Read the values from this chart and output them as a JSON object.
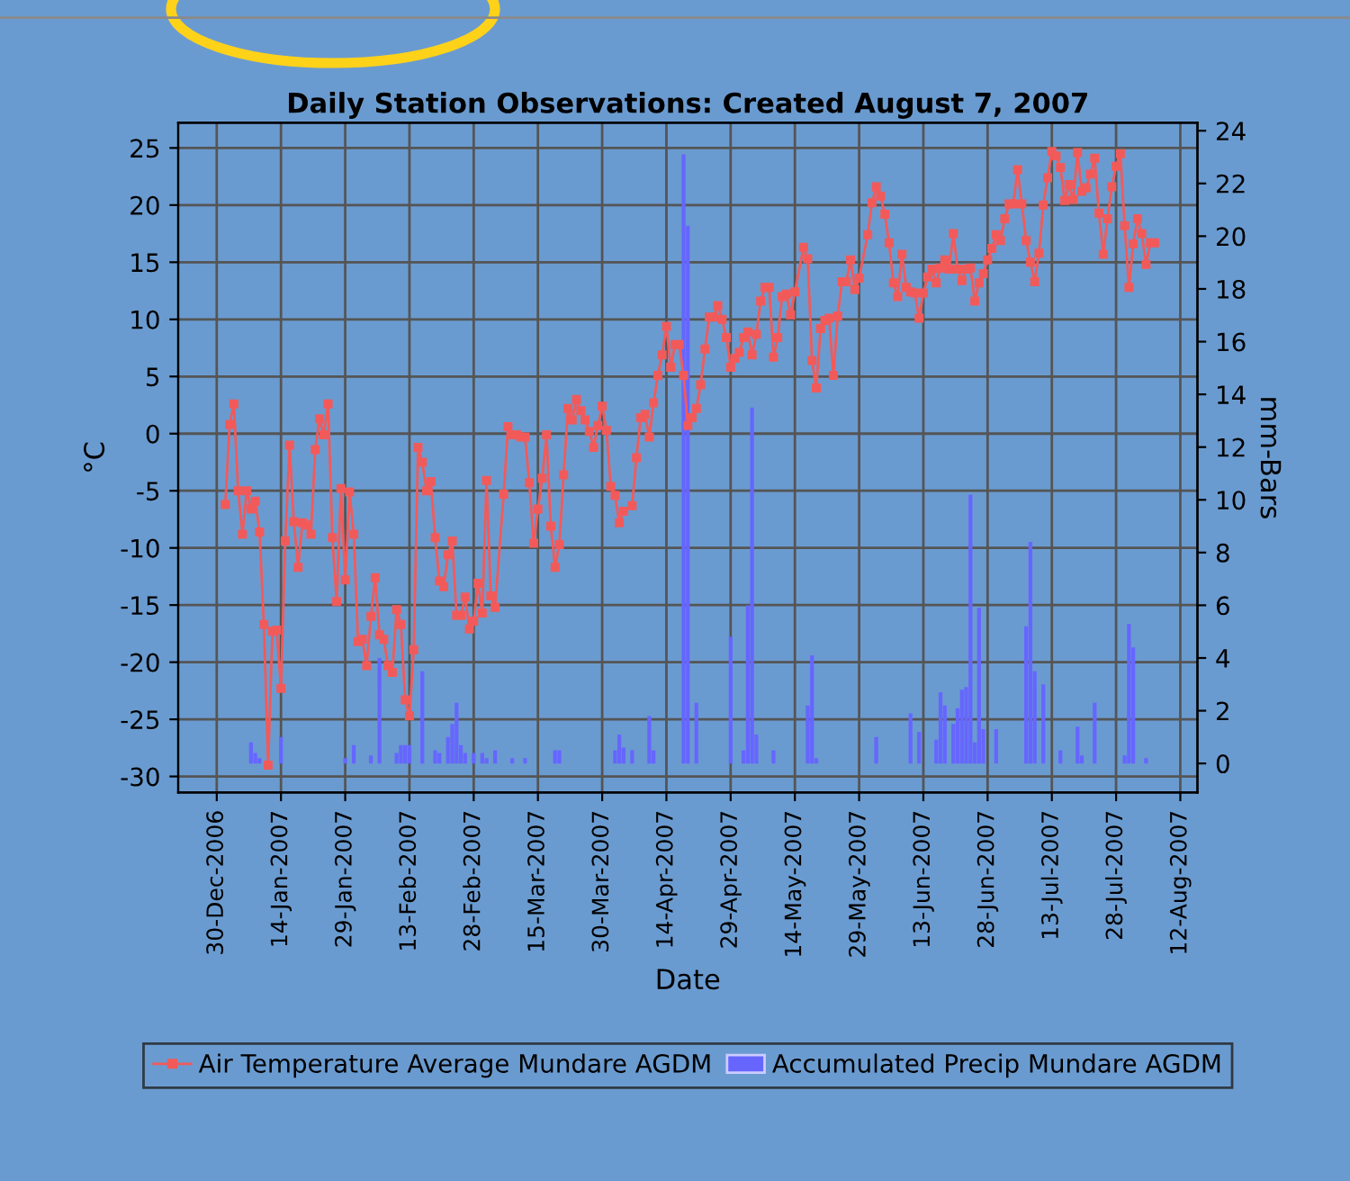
{
  "chart_data": {
    "type": "line",
    "title": "Daily Station Observations: Created August 7, 2007",
    "xlabel": "Date",
    "ylabel": "°C",
    "y2label": "mm-Bars",
    "xlim": [
      "2006-12-21",
      "2007-08-16"
    ],
    "xticks": [
      {
        "value": "2006-12-30",
        "label": "30-Dec-2006"
      },
      {
        "value": "2007-01-14",
        "label": "14-Jan-2007"
      },
      {
        "value": "2007-01-29",
        "label": "29-Jan-2007"
      },
      {
        "value": "2007-02-13",
        "label": "13-Feb-2007"
      },
      {
        "value": "2007-02-28",
        "label": "28-Feb-2007"
      },
      {
        "value": "2007-03-15",
        "label": "15-Mar-2007"
      },
      {
        "value": "2007-03-30",
        "label": "30-Mar-2007"
      },
      {
        "value": "2007-04-14",
        "label": "14-Apr-2007"
      },
      {
        "value": "2007-04-29",
        "label": "29-Apr-2007"
      },
      {
        "value": "2007-05-14",
        "label": "14-May-2007"
      },
      {
        "value": "2007-05-29",
        "label": "29-May-2007"
      },
      {
        "value": "2007-06-13",
        "label": "13-Jun-2007"
      },
      {
        "value": "2007-06-28",
        "label": "28-Jun-2007"
      },
      {
        "value": "2007-07-13",
        "label": "13-Jul-2007"
      },
      {
        "value": "2007-07-28",
        "label": "28-Jul-2007"
      },
      {
        "value": "2007-08-12",
        "label": "12-Aug-2007"
      }
    ],
    "ylim": [
      -31.4,
      27.2
    ],
    "yticks": [
      -30,
      -25,
      -20,
      -15,
      -10,
      -5,
      0,
      5,
      10,
      15,
      20,
      25
    ],
    "y2lim": [
      -1.1,
      24.3
    ],
    "y2ticks": [
      0,
      2,
      4,
      6,
      8,
      10,
      12,
      14,
      16,
      18,
      20,
      22,
      24
    ],
    "grid": true,
    "legend": "bottom",
    "marker": "square",
    "line_style": "solid",
    "series": [
      {
        "name": "Air Temperature Average Mundare AGDM",
        "color": "#f25a5a",
        "x": [
          "2007-01-01",
          "2007-01-02",
          "2007-01-03",
          "2007-01-04",
          "2007-01-05",
          "2007-01-06",
          "2007-01-07",
          "2007-01-08",
          "2007-01-09",
          "2007-01-10",
          "2007-01-11",
          "2007-01-12",
          "2007-01-13",
          "2007-01-14",
          "2007-01-15",
          "2007-01-16",
          "2007-01-17",
          "2007-01-18",
          "2007-01-19",
          "2007-01-20",
          "2007-01-21",
          "2007-01-22",
          "2007-01-23",
          "2007-01-24",
          "2007-01-25",
          "2007-01-26",
          "2007-01-27",
          "2007-01-28",
          "2007-01-29",
          "2007-01-30",
          "2007-01-31",
          "2007-02-01",
          "2007-02-02",
          "2007-02-03",
          "2007-02-04",
          "2007-02-05",
          "2007-02-06",
          "2007-02-07",
          "2007-02-08",
          "2007-02-09",
          "2007-02-10",
          "2007-02-11",
          "2007-02-12",
          "2007-02-13",
          "2007-02-14",
          "2007-02-15",
          "2007-02-16",
          "2007-02-17",
          "2007-02-18",
          "2007-02-19",
          "2007-02-20",
          "2007-02-21",
          "2007-02-22",
          "2007-02-23",
          "2007-02-24",
          "2007-02-25",
          "2007-02-26",
          "2007-02-27",
          "2007-02-28",
          "2007-03-01",
          "2007-03-02",
          "2007-03-03",
          "2007-03-04",
          "2007-03-05",
          "2007-03-07",
          "2007-03-08",
          "2007-03-09",
          "2007-03-10",
          "2007-03-11",
          "2007-03-12",
          "2007-03-13",
          "2007-03-14",
          "2007-03-15",
          "2007-03-16",
          "2007-03-17",
          "2007-03-18",
          "2007-03-19",
          "2007-03-20",
          "2007-03-21",
          "2007-03-22",
          "2007-03-23",
          "2007-03-24",
          "2007-03-25",
          "2007-03-26",
          "2007-03-27",
          "2007-03-28",
          "2007-03-29",
          "2007-03-30",
          "2007-03-31",
          "2007-04-01",
          "2007-04-02",
          "2007-04-03",
          "2007-04-04",
          "2007-04-06",
          "2007-04-07",
          "2007-04-08",
          "2007-04-09",
          "2007-04-10",
          "2007-04-11",
          "2007-04-12",
          "2007-04-13",
          "2007-04-14",
          "2007-04-15",
          "2007-04-16",
          "2007-04-17",
          "2007-04-18",
          "2007-04-19",
          "2007-04-20",
          "2007-04-21",
          "2007-04-22",
          "2007-04-23",
          "2007-04-24",
          "2007-04-25",
          "2007-04-26",
          "2007-04-27",
          "2007-04-28",
          "2007-04-29",
          "2007-04-30",
          "2007-05-01",
          "2007-05-02",
          "2007-05-03",
          "2007-05-04",
          "2007-05-05",
          "2007-05-06",
          "2007-05-07",
          "2007-05-08",
          "2007-05-09",
          "2007-05-10",
          "2007-05-11",
          "2007-05-12",
          "2007-05-13",
          "2007-05-14",
          "2007-05-16",
          "2007-05-17",
          "2007-05-18",
          "2007-05-19",
          "2007-05-20",
          "2007-05-21",
          "2007-05-22",
          "2007-05-23",
          "2007-05-24",
          "2007-05-25",
          "2007-05-26",
          "2007-05-27",
          "2007-05-28",
          "2007-05-29",
          "2007-05-31",
          "2007-06-01",
          "2007-06-02",
          "2007-06-03",
          "2007-06-04",
          "2007-06-05",
          "2007-06-06",
          "2007-06-07",
          "2007-06-08",
          "2007-06-09",
          "2007-06-10",
          "2007-06-11",
          "2007-06-12",
          "2007-06-13",
          "2007-06-14",
          "2007-06-15",
          "2007-06-16",
          "2007-06-17",
          "2007-06-18",
          "2007-06-19",
          "2007-06-20",
          "2007-06-21",
          "2007-06-22",
          "2007-06-23",
          "2007-06-24",
          "2007-06-25",
          "2007-06-26",
          "2007-06-27",
          "2007-06-28",
          "2007-06-29",
          "2007-06-30",
          "2007-07-01",
          "2007-07-02",
          "2007-07-03",
          "2007-07-04",
          "2007-07-05",
          "2007-07-06",
          "2007-07-07",
          "2007-07-08",
          "2007-07-09",
          "2007-07-10",
          "2007-07-11",
          "2007-07-12",
          "2007-07-13",
          "2007-07-14",
          "2007-07-15",
          "2007-07-16",
          "2007-07-17",
          "2007-07-18",
          "2007-07-19",
          "2007-07-20",
          "2007-07-21",
          "2007-07-22",
          "2007-07-23",
          "2007-07-24",
          "2007-07-25",
          "2007-07-26",
          "2007-07-27",
          "2007-07-28",
          "2007-07-29",
          "2007-07-30",
          "2007-07-31",
          "2007-08-01",
          "2007-08-02",
          "2007-08-03",
          "2007-08-04",
          "2007-08-05",
          "2007-08-06"
        ],
        "values": [
          -6.2,
          0.8,
          2.6,
          -5,
          -8.8,
          -5,
          -6.6,
          -5.9,
          -8.6,
          -16.7,
          -29,
          -17.3,
          -17.2,
          -22.3,
          -9.4,
          -1,
          -7.7,
          -11.7,
          -7.8,
          -8,
          -8.8,
          -1.4,
          1.3,
          -0.1,
          2.6,
          -9.1,
          -14.7,
          -4.8,
          -12.8,
          -5.1,
          -8.8,
          -18.2,
          -18,
          -20.3,
          -16,
          -12.6,
          -17.6,
          -18,
          -20.3,
          -20.9,
          -15.4,
          -16.7,
          -23.3,
          -24.7,
          -18.9,
          -1.2,
          -2.5,
          -5,
          -4.2,
          -9.1,
          -12.9,
          -13.4,
          -10.6,
          -9.4,
          -15.9,
          -15.9,
          -14.3,
          -17.1,
          -16.4,
          -13.1,
          -15.7,
          -4.1,
          -14.2,
          -15.2,
          -5.3,
          0.6,
          -0.1,
          -0.1,
          -0.3,
          -0.3,
          -4.3,
          -9.6,
          -6.6,
          -3.9,
          -0.1,
          -8.1,
          -11.7,
          -9.7,
          -3.6,
          2.2,
          1.2,
          3,
          2,
          1.2,
          0.2,
          -1.2,
          0.7,
          2.4,
          0.3,
          -4.6,
          -5.4,
          -7.8,
          -6.8,
          -6.3,
          -2.1,
          1.4,
          1.7,
          -0.3,
          2.7,
          5.1,
          6.9,
          9.4,
          5.8,
          7.8,
          7.8,
          5.1,
          0.7,
          1.4,
          2.2,
          4.3,
          7.4,
          10.2,
          10.2,
          11.2,
          10,
          8.4,
          5.8,
          6.6,
          7.1,
          8.4,
          8.9,
          6.9,
          8.7,
          11.6,
          12.8,
          12.8,
          6.7,
          8.4,
          12,
          12.2,
          10.4,
          12.4,
          16.3,
          15.3,
          6.4,
          4,
          9.2,
          9.9,
          10.1,
          5.1,
          10.3,
          13.3,
          13.3,
          15.2,
          12.6,
          13.6,
          17.4,
          20.2,
          21.6,
          20.8,
          19.2,
          16.7,
          13.2,
          12,
          15.7,
          12.8,
          12.4,
          12.3,
          10.1,
          12.3,
          13.7,
          14.4,
          13.2,
          14.5,
          15.2,
          14.4,
          17.5,
          14.4,
          13.4,
          14.4,
          14.5,
          11.6,
          13.2,
          14,
          15.2,
          16.2,
          17.4,
          16.9,
          18.8,
          20.1,
          20.1,
          23.1,
          20.1,
          16.9,
          15,
          13.3,
          15.8,
          20,
          22.4,
          24.7,
          24.3,
          23.3,
          20.4,
          21.8,
          20.5,
          24.6,
          21.2,
          21.5,
          22.7,
          24.1,
          19.3,
          15.7,
          18.8,
          21.6,
          23.4,
          24.5,
          18.2,
          12.8,
          16.6,
          18.8,
          17.5,
          14.8,
          16.7,
          16.7
        ]
      },
      {
        "name": "Accumulated Precip Mundare AGDM",
        "type": "bar",
        "axis": "y2",
        "color": "#6666ff",
        "x": [
          "2007-01-07",
          "2007-01-08",
          "2007-01-09",
          "2007-01-14",
          "2007-01-29",
          "2007-01-31",
          "2007-02-04",
          "2007-02-06",
          "2007-02-10",
          "2007-02-11",
          "2007-02-12",
          "2007-02-13",
          "2007-02-16",
          "2007-02-19",
          "2007-02-20",
          "2007-02-22",
          "2007-02-23",
          "2007-02-24",
          "2007-02-25",
          "2007-02-26",
          "2007-02-28",
          "2007-03-02",
          "2007-03-03",
          "2007-03-05",
          "2007-03-09",
          "2007-03-12",
          "2007-03-19",
          "2007-03-20",
          "2007-04-02",
          "2007-04-03",
          "2007-04-04",
          "2007-04-06",
          "2007-04-10",
          "2007-04-11",
          "2007-04-18",
          "2007-04-19",
          "2007-04-21",
          "2007-04-29",
          "2007-05-02",
          "2007-05-03",
          "2007-05-04",
          "2007-05-05",
          "2007-05-09",
          "2007-05-17",
          "2007-05-18",
          "2007-05-19",
          "2007-06-02",
          "2007-06-10",
          "2007-06-12",
          "2007-06-16",
          "2007-06-17",
          "2007-06-18",
          "2007-06-20",
          "2007-06-21",
          "2007-06-22",
          "2007-06-23",
          "2007-06-24",
          "2007-06-25",
          "2007-06-26",
          "2007-06-27",
          "2007-06-30",
          "2007-07-07",
          "2007-07-08",
          "2007-07-09",
          "2007-07-11",
          "2007-07-15",
          "2007-07-19",
          "2007-07-20",
          "2007-07-23",
          "2007-07-30",
          "2007-07-31",
          "2007-08-01",
          "2007-08-04"
        ],
        "values": [
          0.8,
          0.4,
          0.2,
          1.0,
          0.2,
          0.7,
          0.3,
          4.0,
          0.4,
          0.7,
          0.7,
          0.7,
          3.5,
          0.5,
          0.4,
          1.0,
          1.5,
          2.3,
          0.7,
          0.4,
          0.4,
          0.4,
          0.2,
          0.5,
          0.2,
          0.2,
          0.5,
          0.5,
          0.5,
          1.1,
          0.6,
          0.5,
          1.8,
          0.5,
          23.1,
          20.4,
          2.3,
          4.8,
          0.5,
          6.0,
          13.5,
          1.1,
          0.5,
          2.2,
          4.1,
          0.2,
          1.0,
          1.9,
          1.2,
          0.9,
          2.7,
          2.2,
          1.5,
          2.1,
          2.8,
          2.9,
          10.2,
          0.8,
          5.9,
          1.3,
          1.3,
          5.2,
          8.4,
          3.5,
          3.0,
          0.5,
          1.4,
          0.3,
          2.3,
          0.3,
          5.3,
          4.4,
          0.2
        ]
      }
    ]
  }
}
